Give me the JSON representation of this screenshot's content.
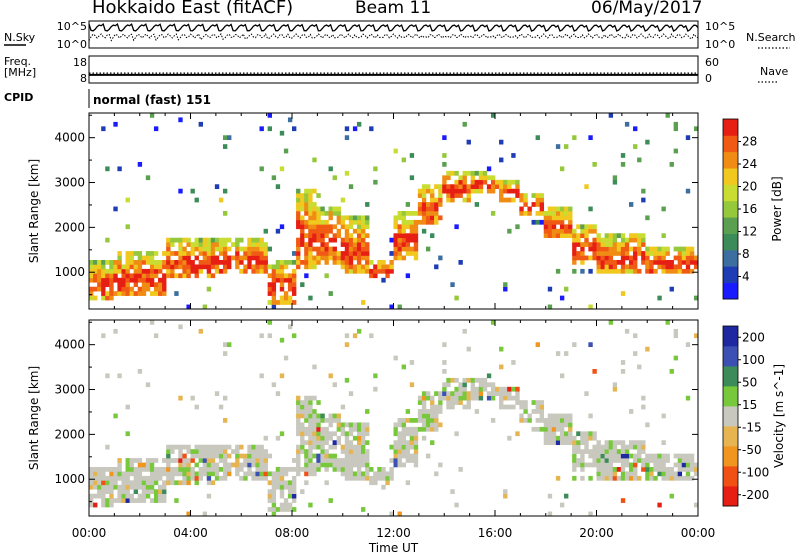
{
  "header": {
    "station": "Hokkaido East (fitACF)",
    "beam": "Beam 11",
    "date": "06/May/2017"
  },
  "panels": {
    "nsky": {
      "label": "N.Sky",
      "ticks": [
        "10^5",
        "10^0"
      ]
    },
    "nsearch": {
      "label": "N.Search",
      "ticks": [
        "10^5",
        "10^0"
      ]
    },
    "freq": {
      "label_line1": "Freq.",
      "label_line2": "[MHz]",
      "ticks": [
        "18",
        "8"
      ],
      "value_mhz": 11
    },
    "nave": {
      "label": "Nave",
      "ticks": [
        "60",
        "0"
      ],
      "value": 22
    },
    "cpid": {
      "label": "CPID",
      "text": "normal (fast) 151"
    }
  },
  "chart_data": {
    "type": "heatmap",
    "xlabel": "Time UT",
    "x_ticks": [
      "00:00",
      "04:00",
      "08:00",
      "12:00",
      "16:00",
      "20:00",
      "00:00"
    ],
    "xlim_hours": [
      0,
      24
    ],
    "ylabel": "Slant Range [km]",
    "y_ticks": [
      1000,
      2000,
      3000,
      4000
    ],
    "ylim_km": [
      180,
      4550
    ],
    "panels": [
      {
        "name": "power",
        "colorbar_label": "Power [dB]",
        "colorbar_ticks": [
          4,
          8,
          12,
          16,
          20,
          24,
          28
        ],
        "colorbar_range": [
          0,
          32
        ],
        "colors": [
          "#1a1aff",
          "#1e3cb4",
          "#3c6ea0",
          "#3c8c5a",
          "#5aa050",
          "#96c83c",
          "#c8dc32",
          "#f0c81e",
          "#f08c14",
          "#f05a14",
          "#e61e14"
        ]
      },
      {
        "name": "velocity",
        "colorbar_label": "Velocity [m s^-1]",
        "colorbar_ticks": [
          "200",
          "100",
          "50",
          "15",
          "-15",
          "-50",
          "-100",
          "-200"
        ],
        "colors": [
          "#1e28a0",
          "#3c50b4",
          "#3c8c5a",
          "#78c83c",
          "#c8c8be",
          "#e6b450",
          "#f0961e",
          "#f05014",
          "#e61e14"
        ]
      }
    ],
    "echo_bands": [
      {
        "t": [
          0.0,
          1.0
        ],
        "r": [
          400,
          1250
        ]
      },
      {
        "t": [
          1.0,
          3.0
        ],
        "r": [
          450,
          1500
        ]
      },
      {
        "t": [
          3.0,
          5.0
        ],
        "r": [
          850,
          1800
        ]
      },
      {
        "t": [
          5.0,
          7.0
        ],
        "r": [
          950,
          1750
        ]
      },
      {
        "t": [
          7.0,
          8.2
        ],
        "r": [
          300,
          1300
        ]
      },
      {
        "t": [
          8.2,
          9.0
        ],
        "r": [
          1100,
          2900
        ]
      },
      {
        "t": [
          9.0,
          10.0
        ],
        "r": [
          1200,
          2500
        ]
      },
      {
        "t": [
          10.0,
          11.0
        ],
        "r": [
          1000,
          2300
        ]
      },
      {
        "t": [
          11.0,
          12.0
        ],
        "r": [
          850,
          1300
        ]
      },
      {
        "t": [
          12.0,
          13.0
        ],
        "r": [
          1300,
          2400
        ]
      },
      {
        "t": [
          13.0,
          14.0
        ],
        "r": [
          2100,
          3000
        ]
      },
      {
        "t": [
          14.0,
          15.0
        ],
        "r": [
          2600,
          3300
        ]
      },
      {
        "t": [
          15.0,
          16.0
        ],
        "r": [
          2800,
          3250
        ]
      },
      {
        "t": [
          16.0,
          17.0
        ],
        "r": [
          2600,
          3100
        ]
      },
      {
        "t": [
          17.0,
          18.0
        ],
        "r": [
          2300,
          2800
        ]
      },
      {
        "t": [
          18.0,
          19.0
        ],
        "r": [
          1800,
          2500
        ]
      },
      {
        "t": [
          19.0,
          20.0
        ],
        "r": [
          1200,
          2100
        ]
      },
      {
        "t": [
          20.0,
          22.0
        ],
        "r": [
          1000,
          1900
        ]
      },
      {
        "t": [
          22.0,
          24.0
        ],
        "r": [
          950,
          1600
        ]
      }
    ]
  }
}
